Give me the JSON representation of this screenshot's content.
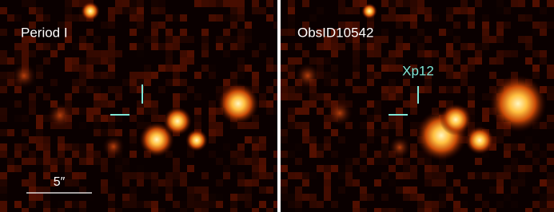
{
  "panels": [
    {
      "label": "Period I",
      "scale_bar": "5″"
    },
    {
      "label": "ObsID10542",
      "source_label": "Xp12"
    }
  ]
}
